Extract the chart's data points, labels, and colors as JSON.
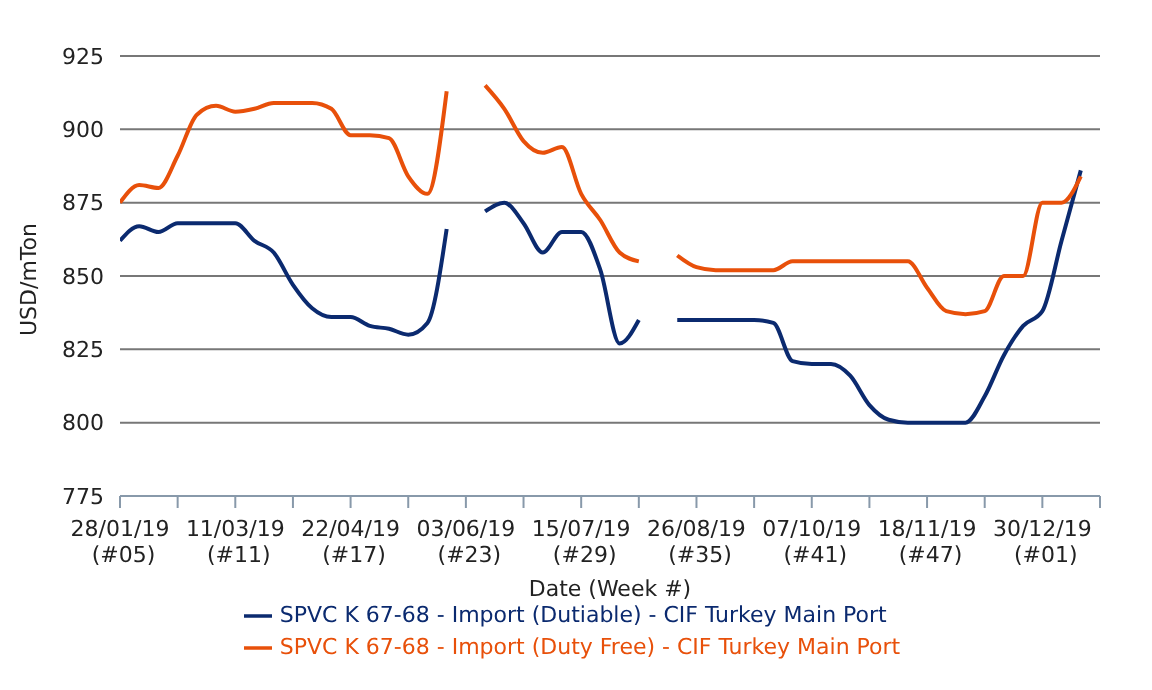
{
  "chart_data": {
    "type": "line",
    "xlabel": "Date (Week #)",
    "ylabel": "USD/mTon",
    "x": [
      "2019-01-28",
      "2019-02-04",
      "2019-02-11",
      "2019-02-18",
      "2019-02-25",
      "2019-03-04",
      "2019-03-11",
      "2019-03-18",
      "2019-03-25",
      "2019-04-01",
      "2019-04-08",
      "2019-04-15",
      "2019-04-22",
      "2019-04-29",
      "2019-05-06",
      "2019-05-13",
      "2019-05-20",
      "2019-05-27",
      "2019-06-03",
      "2019-06-10",
      "2019-06-17",
      "2019-06-24",
      "2019-07-01",
      "2019-07-08",
      "2019-07-15",
      "2019-07-22",
      "2019-07-29",
      "2019-08-05",
      "2019-08-12",
      "2019-08-19",
      "2019-08-26",
      "2019-09-02",
      "2019-09-09",
      "2019-09-16",
      "2019-09-23",
      "2019-09-30",
      "2019-10-07",
      "2019-10-14",
      "2019-10-21",
      "2019-10-28",
      "2019-11-04",
      "2019-11-11",
      "2019-11-18",
      "2019-11-25",
      "2019-12-02",
      "2019-12-09",
      "2019-12-16",
      "2019-12-23",
      "2019-12-30",
      "2020-01-06",
      "2020-01-13"
    ],
    "series": [
      {
        "name": "SPVC K 67-68 - Import (Dutiable) - CIF Turkey Main Port",
        "color": "#0b2a6f",
        "values": [
          862,
          867,
          865,
          868,
          868,
          868,
          868,
          862,
          858,
          847,
          839,
          836,
          836,
          833,
          832,
          830,
          834,
          866,
          null,
          872,
          875,
          868,
          858,
          865,
          865,
          852,
          827,
          835,
          null,
          835,
          835,
          835,
          835,
          835,
          834,
          821,
          820,
          820,
          816,
          806,
          801,
          800,
          800,
          800,
          800,
          809,
          823,
          833,
          838,
          862,
          886
        ]
      },
      {
        "name": "SPVC K 67-68 - Import (Duty Free) - CIF Turkey Main Port",
        "color": "#e8500a",
        "values": [
          875,
          881,
          880,
          891,
          905,
          908,
          906,
          907,
          909,
          909,
          909,
          907,
          898,
          898,
          897,
          884,
          878,
          913,
          null,
          915,
          907,
          896,
          892,
          894,
          878,
          869,
          858,
          855,
          null,
          857,
          853,
          852,
          852,
          852,
          852,
          855,
          855,
          855,
          855,
          855,
          855,
          855,
          846,
          838,
          837,
          838,
          850,
          850,
          875,
          875,
          884
        ]
      }
    ],
    "xlim": [
      "2019-01-28",
      "2020-01-20"
    ],
    "xticks": [
      {
        "value": "2019-01-28",
        "label": "28/01/19 (#05)"
      },
      {
        "value": "2019-02-18",
        "label": null
      },
      {
        "value": "2019-03-11",
        "label": "11/03/19 (#11)"
      },
      {
        "value": "2019-04-01",
        "label": null
      },
      {
        "value": "2019-04-22",
        "label": "22/04/19 (#17)"
      },
      {
        "value": "2019-05-13",
        "label": null
      },
      {
        "value": "2019-06-03",
        "label": "03/06/19 (#23)"
      },
      {
        "value": "2019-06-24",
        "label": null
      },
      {
        "value": "2019-07-15",
        "label": "15/07/19 (#29)"
      },
      {
        "value": "2019-08-05",
        "label": null
      },
      {
        "value": "2019-08-26",
        "label": "26/08/19 (#35)"
      },
      {
        "value": "2019-09-16",
        "label": null
      },
      {
        "value": "2019-10-07",
        "label": "07/10/19 (#41)"
      },
      {
        "value": "2019-10-28",
        "label": null
      },
      {
        "value": "2019-11-18",
        "label": "18/11/19 (#47)"
      },
      {
        "value": "2019-12-09",
        "label": null
      },
      {
        "value": "2019-12-30",
        "label": "30/12/19 (#01)"
      },
      {
        "value": "2020-01-20",
        "label": null
      }
    ],
    "ylim": [
      775,
      925
    ],
    "yticks": [
      775,
      800,
      825,
      850,
      875,
      900,
      925
    ],
    "grid": "y",
    "legend": "bottom",
    "marker": "none",
    "line_style": "solid"
  }
}
